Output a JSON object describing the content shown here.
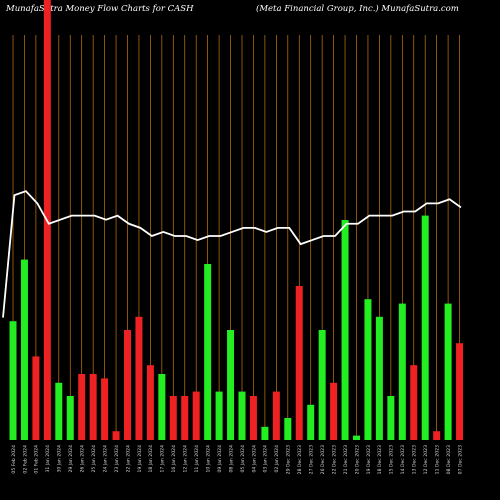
{
  "header": {
    "left_title": "MunafaSutra  Money Flow  Charts for CASH",
    "right_title": "(Meta  Financial Group,  Inc.) MunafaSutra.com"
  },
  "colors": {
    "background": "#000000",
    "up": "#22ee22",
    "down": "#ee2222",
    "gridline": "#c87a10",
    "line": "#ffffff"
  },
  "chart_data": {
    "type": "bar",
    "title": "MunafaSutra  Money Flow  Charts for CASH",
    "xlabel": "",
    "ylabel": "",
    "grid": "vertical",
    "ylim": [
      0,
      100
    ],
    "bars": [
      {
        "label": "05 Feb 2024",
        "value": 27,
        "dir": "up"
      },
      {
        "label": "02 Feb 2024",
        "value": 41,
        "dir": "up"
      },
      {
        "label": "01 Feb 2024",
        "value": 19,
        "dir": "down"
      },
      {
        "label": "31 Jan 2024",
        "value": 100,
        "dir": "down"
      },
      {
        "label": "30 Jan 2024",
        "value": 13,
        "dir": "up"
      },
      {
        "label": "29 Jan 2024",
        "value": 10,
        "dir": "up"
      },
      {
        "label": "26 Jan 2024",
        "value": 15,
        "dir": "down"
      },
      {
        "label": "25 Jan 2024",
        "value": 15,
        "dir": "down"
      },
      {
        "label": "24 Jan 2024",
        "value": 14,
        "dir": "down"
      },
      {
        "label": "23 Jan 2024",
        "value": 2,
        "dir": "down"
      },
      {
        "label": "22 Jan 2024",
        "value": 25,
        "dir": "down"
      },
      {
        "label": "19 Jan 2024",
        "value": 28,
        "dir": "down"
      },
      {
        "label": "18 Jan 2024",
        "value": 17,
        "dir": "down"
      },
      {
        "label": "17 Jan 2024",
        "value": 15,
        "dir": "up"
      },
      {
        "label": "16 Jan 2024",
        "value": 10,
        "dir": "down"
      },
      {
        "label": "12 Jan 2024",
        "value": 10,
        "dir": "down"
      },
      {
        "label": "11 Jan 2024",
        "value": 11,
        "dir": "down"
      },
      {
        "label": "10 Jan 2024",
        "value": 40,
        "dir": "up"
      },
      {
        "label": "09 Jan 2024",
        "value": 11,
        "dir": "up"
      },
      {
        "label": "08 Jan 2024",
        "value": 25,
        "dir": "up"
      },
      {
        "label": "05 Jan 2024",
        "value": 11,
        "dir": "up"
      },
      {
        "label": "04 Jan 2024",
        "value": 10,
        "dir": "down"
      },
      {
        "label": "03 Jan 2024",
        "value": 3,
        "dir": "up"
      },
      {
        "label": "02 Jan 2024",
        "value": 11,
        "dir": "down"
      },
      {
        "label": "29 Dec 2023",
        "value": 5,
        "dir": "up"
      },
      {
        "label": "28 Dec 2023",
        "value": 35,
        "dir": "down"
      },
      {
        "label": "27 Dec 2023",
        "value": 8,
        "dir": "up"
      },
      {
        "label": "26 Dec 2023",
        "value": 25,
        "dir": "up"
      },
      {
        "label": "22 Dec 2023",
        "value": 13,
        "dir": "down"
      },
      {
        "label": "21 Dec 2023",
        "value": 50,
        "dir": "up"
      },
      {
        "label": "20 Dec 2023",
        "value": 1,
        "dir": "up"
      },
      {
        "label": "19 Dec 2023",
        "value": 32,
        "dir": "up"
      },
      {
        "label": "18 Dec 2023",
        "value": 28,
        "dir": "up"
      },
      {
        "label": "15 Dec 2023",
        "value": 10,
        "dir": "up"
      },
      {
        "label": "14 Dec 2023",
        "value": 31,
        "dir": "up"
      },
      {
        "label": "13 Dec 2023",
        "value": 17,
        "dir": "down"
      },
      {
        "label": "12 Dec 2023",
        "value": 51,
        "dir": "up"
      },
      {
        "label": "11 Dec 2023",
        "value": 2,
        "dir": "down"
      },
      {
        "label": "08 Dec 2023",
        "value": 31,
        "dir": "up"
      },
      {
        "label": "07 Dec 2023",
        "value": 22,
        "dir": "down"
      }
    ],
    "price_line": {
      "ylim": [
        0,
        100
      ],
      "values": [
        30,
        60,
        61,
        58,
        53,
        54,
        55,
        55,
        55,
        54,
        55,
        53,
        52,
        50,
        51,
        50,
        50,
        49,
        50,
        50,
        51,
        52,
        52,
        51,
        52,
        52,
        48,
        49,
        50,
        50,
        53,
        53,
        55,
        55,
        55,
        56,
        56,
        58,
        58,
        59,
        57
      ]
    }
  }
}
